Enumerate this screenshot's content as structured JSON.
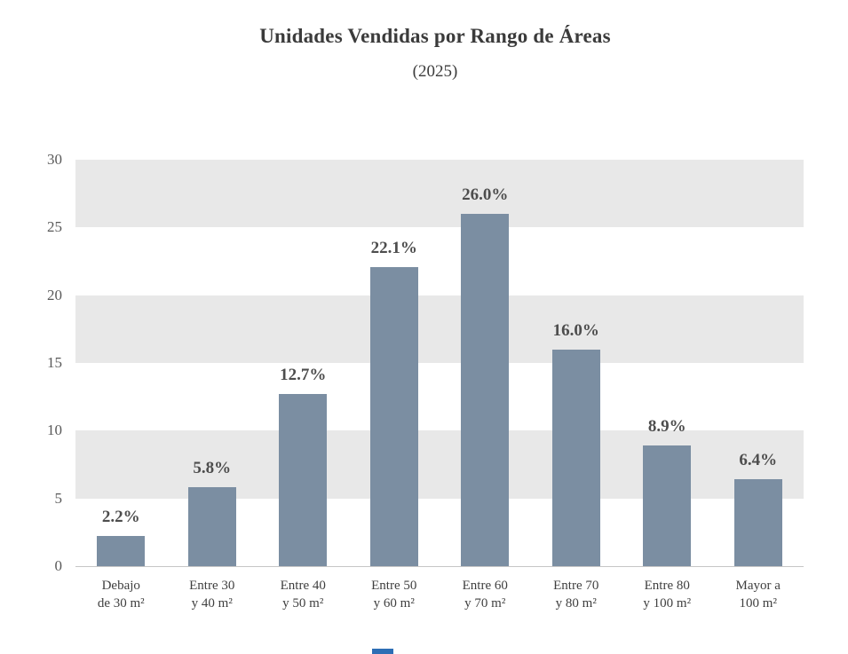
{
  "chart_data": {
    "type": "bar",
    "title": "Unidades Vendidas por Rango de Áreas",
    "subtitle": "(2025)",
    "categories": [
      [
        "Debajo",
        "de 30 m²"
      ],
      [
        "Entre 30",
        "y 40 m²"
      ],
      [
        "Entre 40",
        "y 50 m²"
      ],
      [
        "Entre 50",
        "y 60 m²"
      ],
      [
        "Entre 60",
        "y 70 m²"
      ],
      [
        "Entre 70",
        "y 80 m²"
      ],
      [
        "Entre 80",
        "y 100 m²"
      ],
      [
        "Mayor a",
        "100 m²"
      ]
    ],
    "values": [
      2.2,
      5.8,
      12.7,
      22.1,
      26.0,
      16.0,
      8.9,
      6.4
    ],
    "labels": [
      "2.2%",
      "5.8%",
      "12.7%",
      "22.1%",
      "26.0%",
      "16.0%",
      "8.9%",
      "6.4%"
    ],
    "xlabel": "",
    "ylabel": "",
    "ylim": [
      0,
      30
    ],
    "yticks": [
      0,
      5,
      10,
      15,
      20,
      25,
      30
    ],
    "grid": "horizontal-banded",
    "legend": "none",
    "bar_color": "#7b8ea2",
    "band_color": "#e8e8e8",
    "background_color": "#ffffff"
  }
}
